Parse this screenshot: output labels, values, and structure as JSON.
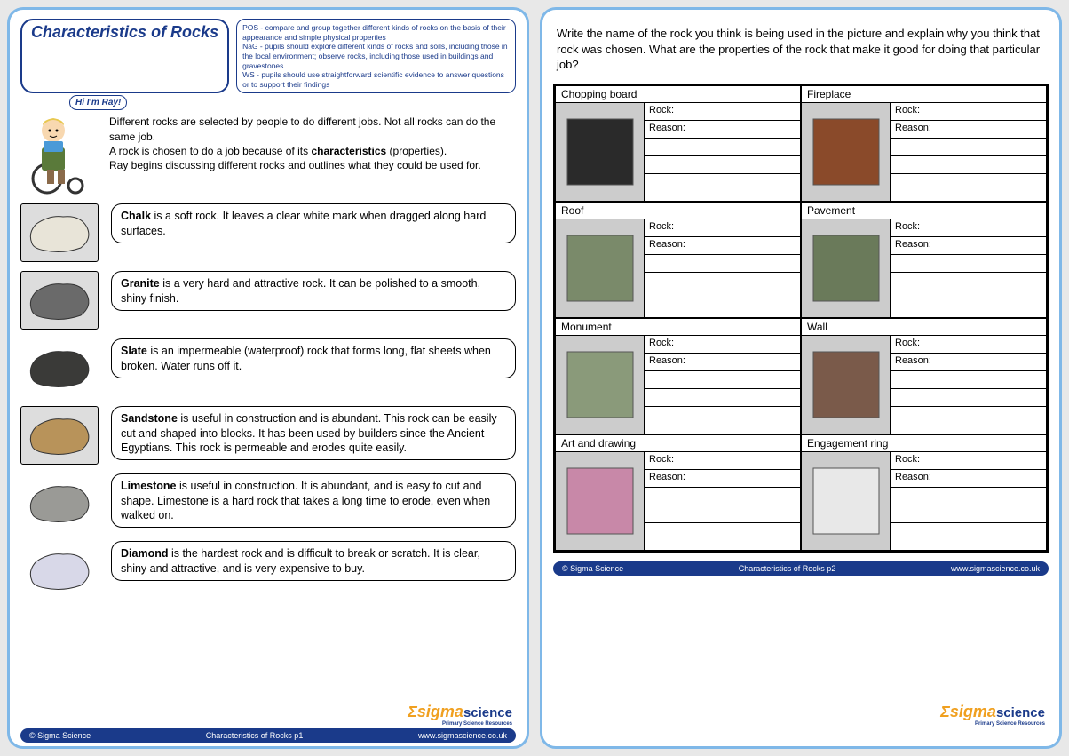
{
  "title": "Characteristics of Rocks",
  "standards": {
    "pos": "POS - compare and group together different kinds of rocks on the basis of their appearance and simple physical properties",
    "nag": "NaG - pupils should explore different kinds of rocks and soils, including those in the local environment; observe rocks, including those used in buildings and gravestones",
    "ws": "WS - pupils should use straightforward scientific evidence to answer questions or to support their findings"
  },
  "speech": "Hi I'm Ray!",
  "intro": {
    "l1": "Different rocks are selected by people to do different jobs. Not all rocks can do the same job.",
    "l2a": "A rock is chosen to do a job because of its ",
    "l2b": "characteristics",
    "l2c": " (properties).",
    "l3": "Ray begins discussing different rocks and outlines what they could be used for."
  },
  "rocks": [
    {
      "name": "Chalk",
      "text": " is a soft rock. It leaves a clear white mark when dragged along hard surfaces.",
      "fill": "#e8e4d8"
    },
    {
      "name": "Granite",
      "text": " is a very hard and attractive rock. It can be polished to a smooth, shiny finish.",
      "fill": "#6a6a6a"
    },
    {
      "name": "Slate",
      "text": " is an impermeable (waterproof) rock that forms long, flat sheets when broken. Water runs off it.",
      "fill": "#3a3a38",
      "noborder": true
    },
    {
      "name": "Sandstone",
      "text": " is useful in construction and is abundant. This rock can be easily cut and shaped into blocks. It has been used by builders since the Ancient Egyptians. This rock is permeable and erodes quite easily.",
      "fill": "#b8935a"
    },
    {
      "name": "Limestone",
      "text": " is useful in construction.  It is abundant, and is easy to cut and shape. Limestone is a hard rock that takes a long time to erode, even when walked on.",
      "fill": "#9a9a96",
      "noborder": true
    },
    {
      "name": "Diamond",
      "text": " is the hardest rock and is difficult to break or scratch. It is clear, shiny and attractive, and is very expensive to buy.",
      "fill": "#d8d8e8",
      "noborder": true
    }
  ],
  "footer1": {
    "left": "© Sigma Science",
    "mid": "Characteristics of Rocks p1",
    "right": "www.sigmascience.co.uk"
  },
  "footer2": {
    "left": "© Sigma Science",
    "mid": "Characteristics of Rocks p2",
    "right": "www.sigmascience.co.uk"
  },
  "logo": {
    "brand1": "Σsigma",
    "brand2": "science",
    "tag": "Primary Science Resources"
  },
  "instruction": "Write the name of the rock you think is being used in the picture and explain why you think that rock was chosen. What are the properties of the rock that make it good for doing that particular job?",
  "labels": {
    "rock": "Rock:",
    "reason": "Reason:"
  },
  "items": [
    {
      "title": "Chopping board",
      "fill": "#2a2a2a"
    },
    {
      "title": "Fireplace",
      "fill": "#8a4a2a"
    },
    {
      "title": "Roof",
      "fill": "#7a8a6a"
    },
    {
      "title": "Pavement",
      "fill": "#6a7a5a"
    },
    {
      "title": "Monument",
      "fill": "#8a9a7a"
    },
    {
      "title": "Wall",
      "fill": "#7a5a4a"
    },
    {
      "title": "Art and drawing",
      "fill": "#c888a8"
    },
    {
      "title": "Engagement ring",
      "fill": "#e8e8e8"
    }
  ],
  "colors": {
    "border": "#7fb8e8",
    "accent": "#1a3a8a",
    "logo_orange": "#f0a020"
  }
}
